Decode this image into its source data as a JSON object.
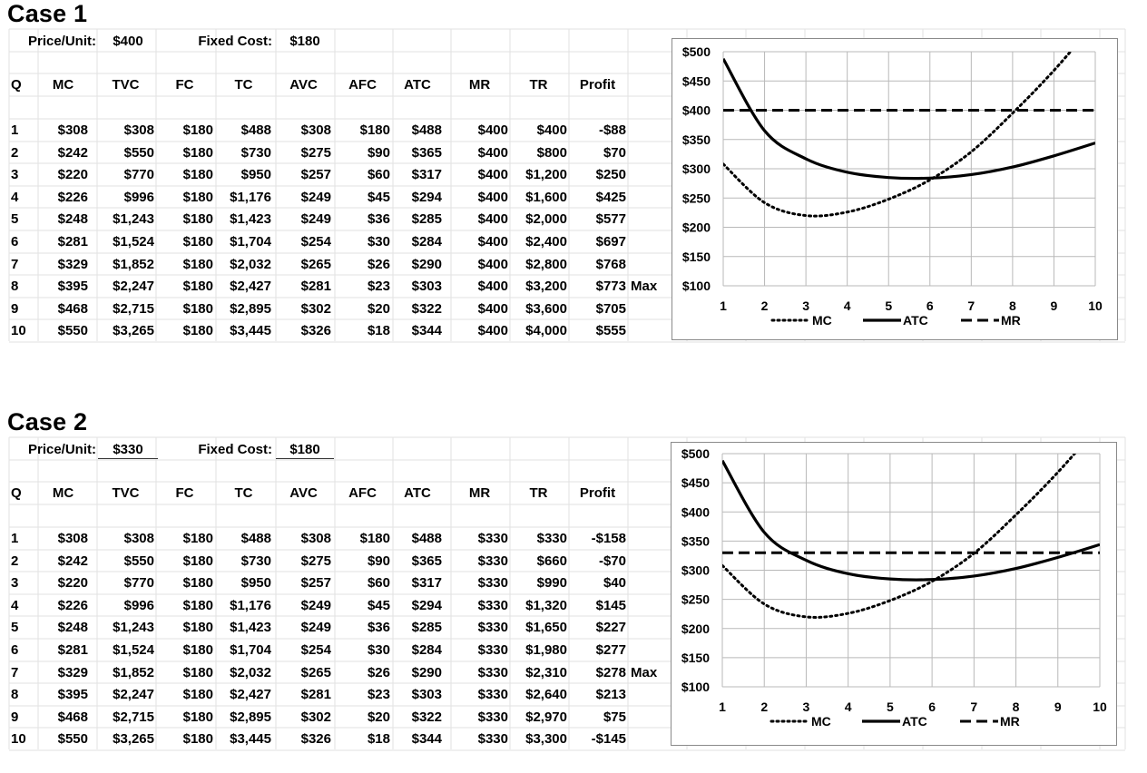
{
  "columns": [
    "Q",
    "MC",
    "TVC",
    "FC",
    "TC",
    "AVC",
    "AFC",
    "ATC",
    "MR",
    "TR",
    "Profit"
  ],
  "cases": [
    {
      "title": "Case 1",
      "price_label": "Price/Unit:",
      "price": "$400",
      "fixed_label": "Fixed Cost:",
      "fixed_cost": "$180",
      "max_label": "Max",
      "max_row": 7,
      "rows": [
        [
          "1",
          "$308",
          "$308",
          "$180",
          "$488",
          "$308",
          "$180",
          "$488",
          "$400",
          "$400",
          "-$88"
        ],
        [
          "2",
          "$242",
          "$550",
          "$180",
          "$730",
          "$275",
          "$90",
          "$365",
          "$400",
          "$800",
          "$70"
        ],
        [
          "3",
          "$220",
          "$770",
          "$180",
          "$950",
          "$257",
          "$60",
          "$317",
          "$400",
          "$1,200",
          "$250"
        ],
        [
          "4",
          "$226",
          "$996",
          "$180",
          "$1,176",
          "$249",
          "$45",
          "$294",
          "$400",
          "$1,600",
          "$425"
        ],
        [
          "5",
          "$248",
          "$1,243",
          "$180",
          "$1,423",
          "$249",
          "$36",
          "$285",
          "$400",
          "$2,000",
          "$577"
        ],
        [
          "6",
          "$281",
          "$1,524",
          "$180",
          "$1,704",
          "$254",
          "$30",
          "$284",
          "$400",
          "$2,400",
          "$697"
        ],
        [
          "7",
          "$329",
          "$1,852",
          "$180",
          "$2,032",
          "$265",
          "$26",
          "$290",
          "$400",
          "$2,800",
          "$768"
        ],
        [
          "8",
          "$395",
          "$2,247",
          "$180",
          "$2,427",
          "$281",
          "$23",
          "$303",
          "$400",
          "$3,200",
          "$773"
        ],
        [
          "9",
          "$468",
          "$2,715",
          "$180",
          "$2,895",
          "$302",
          "$20",
          "$322",
          "$400",
          "$3,600",
          "$705"
        ],
        [
          "10",
          "$550",
          "$3,265",
          "$180",
          "$3,445",
          "$326",
          "$18",
          "$344",
          "$400",
          "$4,000",
          "$555"
        ]
      ]
    },
    {
      "title": "Case 2",
      "price_label": "Price/Unit:",
      "price": "$330",
      "fixed_label": "Fixed Cost:",
      "fixed_cost": "$180",
      "max_label": "Max",
      "max_row": 6,
      "rows": [
        [
          "1",
          "$308",
          "$308",
          "$180",
          "$488",
          "$308",
          "$180",
          "$488",
          "$330",
          "$330",
          "-$158"
        ],
        [
          "2",
          "$242",
          "$550",
          "$180",
          "$730",
          "$275",
          "$90",
          "$365",
          "$330",
          "$660",
          "-$70"
        ],
        [
          "3",
          "$220",
          "$770",
          "$180",
          "$950",
          "$257",
          "$60",
          "$317",
          "$330",
          "$990",
          "$40"
        ],
        [
          "4",
          "$226",
          "$996",
          "$180",
          "$1,176",
          "$249",
          "$45",
          "$294",
          "$330",
          "$1,320",
          "$145"
        ],
        [
          "5",
          "$248",
          "$1,243",
          "$180",
          "$1,423",
          "$249",
          "$36",
          "$285",
          "$330",
          "$1,650",
          "$227"
        ],
        [
          "6",
          "$281",
          "$1,524",
          "$180",
          "$1,704",
          "$254",
          "$30",
          "$284",
          "$330",
          "$1,980",
          "$277"
        ],
        [
          "7",
          "$329",
          "$1,852",
          "$180",
          "$2,032",
          "$265",
          "$26",
          "$290",
          "$330",
          "$2,310",
          "$278"
        ],
        [
          "8",
          "$395",
          "$2,247",
          "$180",
          "$2,427",
          "$281",
          "$23",
          "$303",
          "$330",
          "$2,640",
          "$213"
        ],
        [
          "9",
          "$468",
          "$2,715",
          "$180",
          "$2,895",
          "$302",
          "$20",
          "$322",
          "$330",
          "$2,970",
          "$75"
        ],
        [
          "10",
          "$550",
          "$3,265",
          "$180",
          "$3,445",
          "$326",
          "$18",
          "$344",
          "$330",
          "$3,300",
          "-$145"
        ]
      ]
    }
  ],
  "chart_data": [
    {
      "type": "line",
      "x": [
        1,
        2,
        3,
        4,
        5,
        6,
        7,
        8,
        9,
        10
      ],
      "xlim": [
        1,
        10
      ],
      "ylim": [
        100,
        500
      ],
      "yticks": [
        100,
        150,
        200,
        250,
        300,
        350,
        400,
        450,
        500
      ],
      "ytick_labels": [
        "$100",
        "$150",
        "$200",
        "$250",
        "$300",
        "$350",
        "$400",
        "$450",
        "$500"
      ],
      "xtick_labels": [
        "1",
        "2",
        "3",
        "4",
        "5",
        "6",
        "7",
        "8",
        "9",
        "10"
      ],
      "grid": true,
      "legend_position": "bottom",
      "series": [
        {
          "name": "MC",
          "style": "dotted",
          "values": [
            308,
            242,
            220,
            226,
            248,
            281,
            329,
            395,
            468,
            550
          ]
        },
        {
          "name": "ATC",
          "style": "solid",
          "values": [
            488,
            365,
            317,
            294,
            285,
            284,
            290,
            303,
            322,
            344
          ]
        },
        {
          "name": "MR",
          "style": "dashed",
          "values": [
            400,
            400,
            400,
            400,
            400,
            400,
            400,
            400,
            400,
            400
          ]
        }
      ]
    },
    {
      "type": "line",
      "x": [
        1,
        2,
        3,
        4,
        5,
        6,
        7,
        8,
        9,
        10
      ],
      "xlim": [
        1,
        10
      ],
      "ylim": [
        100,
        500
      ],
      "yticks": [
        100,
        150,
        200,
        250,
        300,
        350,
        400,
        450,
        500
      ],
      "ytick_labels": [
        "$100",
        "$150",
        "$200",
        "$250",
        "$300",
        "$350",
        "$400",
        "$450",
        "$500"
      ],
      "xtick_labels": [
        "1",
        "2",
        "3",
        "4",
        "5",
        "6",
        "7",
        "8",
        "9",
        "10"
      ],
      "grid": true,
      "legend_position": "bottom",
      "series": [
        {
          "name": "MC",
          "style": "dotted",
          "values": [
            308,
            242,
            220,
            226,
            248,
            281,
            329,
            395,
            468,
            550
          ]
        },
        {
          "name": "ATC",
          "style": "solid",
          "values": [
            488,
            365,
            317,
            294,
            285,
            284,
            290,
            303,
            322,
            344
          ]
        },
        {
          "name": "MR",
          "style": "dashed",
          "values": [
            330,
            330,
            330,
            330,
            330,
            330,
            330,
            330,
            330,
            330
          ]
        }
      ]
    }
  ]
}
